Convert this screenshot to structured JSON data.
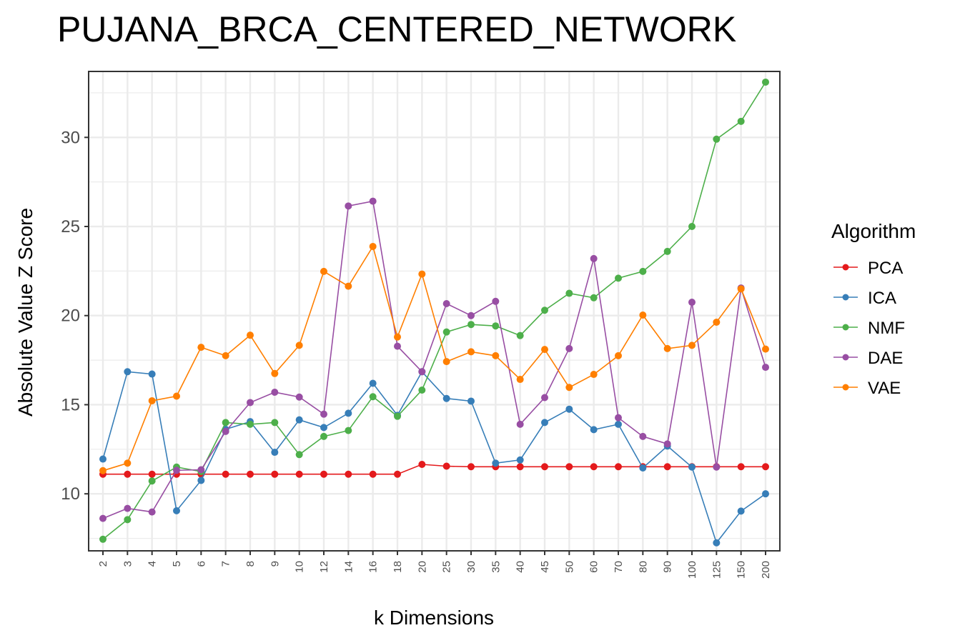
{
  "chart_data": {
    "type": "line",
    "title": "PUJANA_BRCA_CENTERED_NETWORK",
    "xlabel": "k Dimensions",
    "ylabel": "Absolute Value Z Score",
    "categories": [
      "2",
      "3",
      "4",
      "5",
      "6",
      "7",
      "8",
      "9",
      "10",
      "12",
      "14",
      "16",
      "18",
      "20",
      "25",
      "30",
      "35",
      "40",
      "45",
      "50",
      "60",
      "70",
      "80",
      "90",
      "100",
      "125",
      "150",
      "200"
    ],
    "ylim": [
      6.8,
      33.7
    ],
    "yticks": [
      10,
      15,
      20,
      25,
      30
    ],
    "grid": true,
    "legend": {
      "title": "Algorithm",
      "position": "right"
    },
    "series": [
      {
        "name": "PCA",
        "color": "#E41A1C",
        "values": [
          11.1,
          11.1,
          11.1,
          11.1,
          11.1,
          11.1,
          11.1,
          11.1,
          11.1,
          11.1,
          11.1,
          11.1,
          11.1,
          11.65,
          11.55,
          11.52,
          11.52,
          11.52,
          11.52,
          11.52,
          11.52,
          11.52,
          11.52,
          11.52,
          11.52,
          11.52,
          11.52,
          11.52
        ]
      },
      {
        "name": "ICA",
        "color": "#377EB8",
        "values": [
          11.95,
          16.85,
          16.72,
          9.05,
          10.75,
          13.62,
          14.05,
          12.33,
          14.15,
          13.72,
          14.52,
          16.2,
          14.4,
          16.85,
          15.35,
          15.2,
          11.72,
          11.9,
          14.0,
          14.75,
          13.6,
          13.9,
          11.45,
          12.68,
          11.5,
          7.25,
          9.03,
          10.0
        ]
      },
      {
        "name": "NMF",
        "color": "#4DAF4A",
        "values": [
          7.45,
          8.55,
          10.72,
          11.5,
          11.25,
          14.0,
          13.9,
          14.0,
          12.2,
          13.22,
          13.55,
          15.45,
          14.35,
          15.82,
          19.08,
          19.5,
          19.42,
          18.88,
          20.3,
          21.25,
          21.0,
          22.1,
          22.48,
          23.6,
          25.0,
          29.9,
          30.9,
          33.1
        ]
      },
      {
        "name": "DAE",
        "color": "#984EA3",
        "values": [
          8.62,
          9.18,
          8.98,
          11.32,
          11.35,
          13.5,
          15.12,
          15.7,
          15.43,
          14.47,
          26.15,
          26.42,
          18.28,
          16.85,
          20.67,
          20.0,
          20.8,
          13.9,
          15.4,
          18.15,
          23.2,
          14.27,
          13.22,
          12.8,
          20.75,
          11.5,
          21.55,
          17.1
        ]
      },
      {
        "name": "VAE",
        "color": "#FF7F00",
        "values": [
          11.3,
          11.72,
          15.22,
          15.48,
          18.22,
          17.75,
          18.9,
          16.75,
          18.33,
          22.48,
          21.65,
          23.88,
          18.8,
          22.33,
          17.42,
          17.97,
          17.75,
          16.42,
          18.1,
          15.97,
          16.7,
          17.75,
          20.03,
          18.15,
          18.33,
          19.63,
          21.5,
          18.12
        ]
      }
    ]
  }
}
